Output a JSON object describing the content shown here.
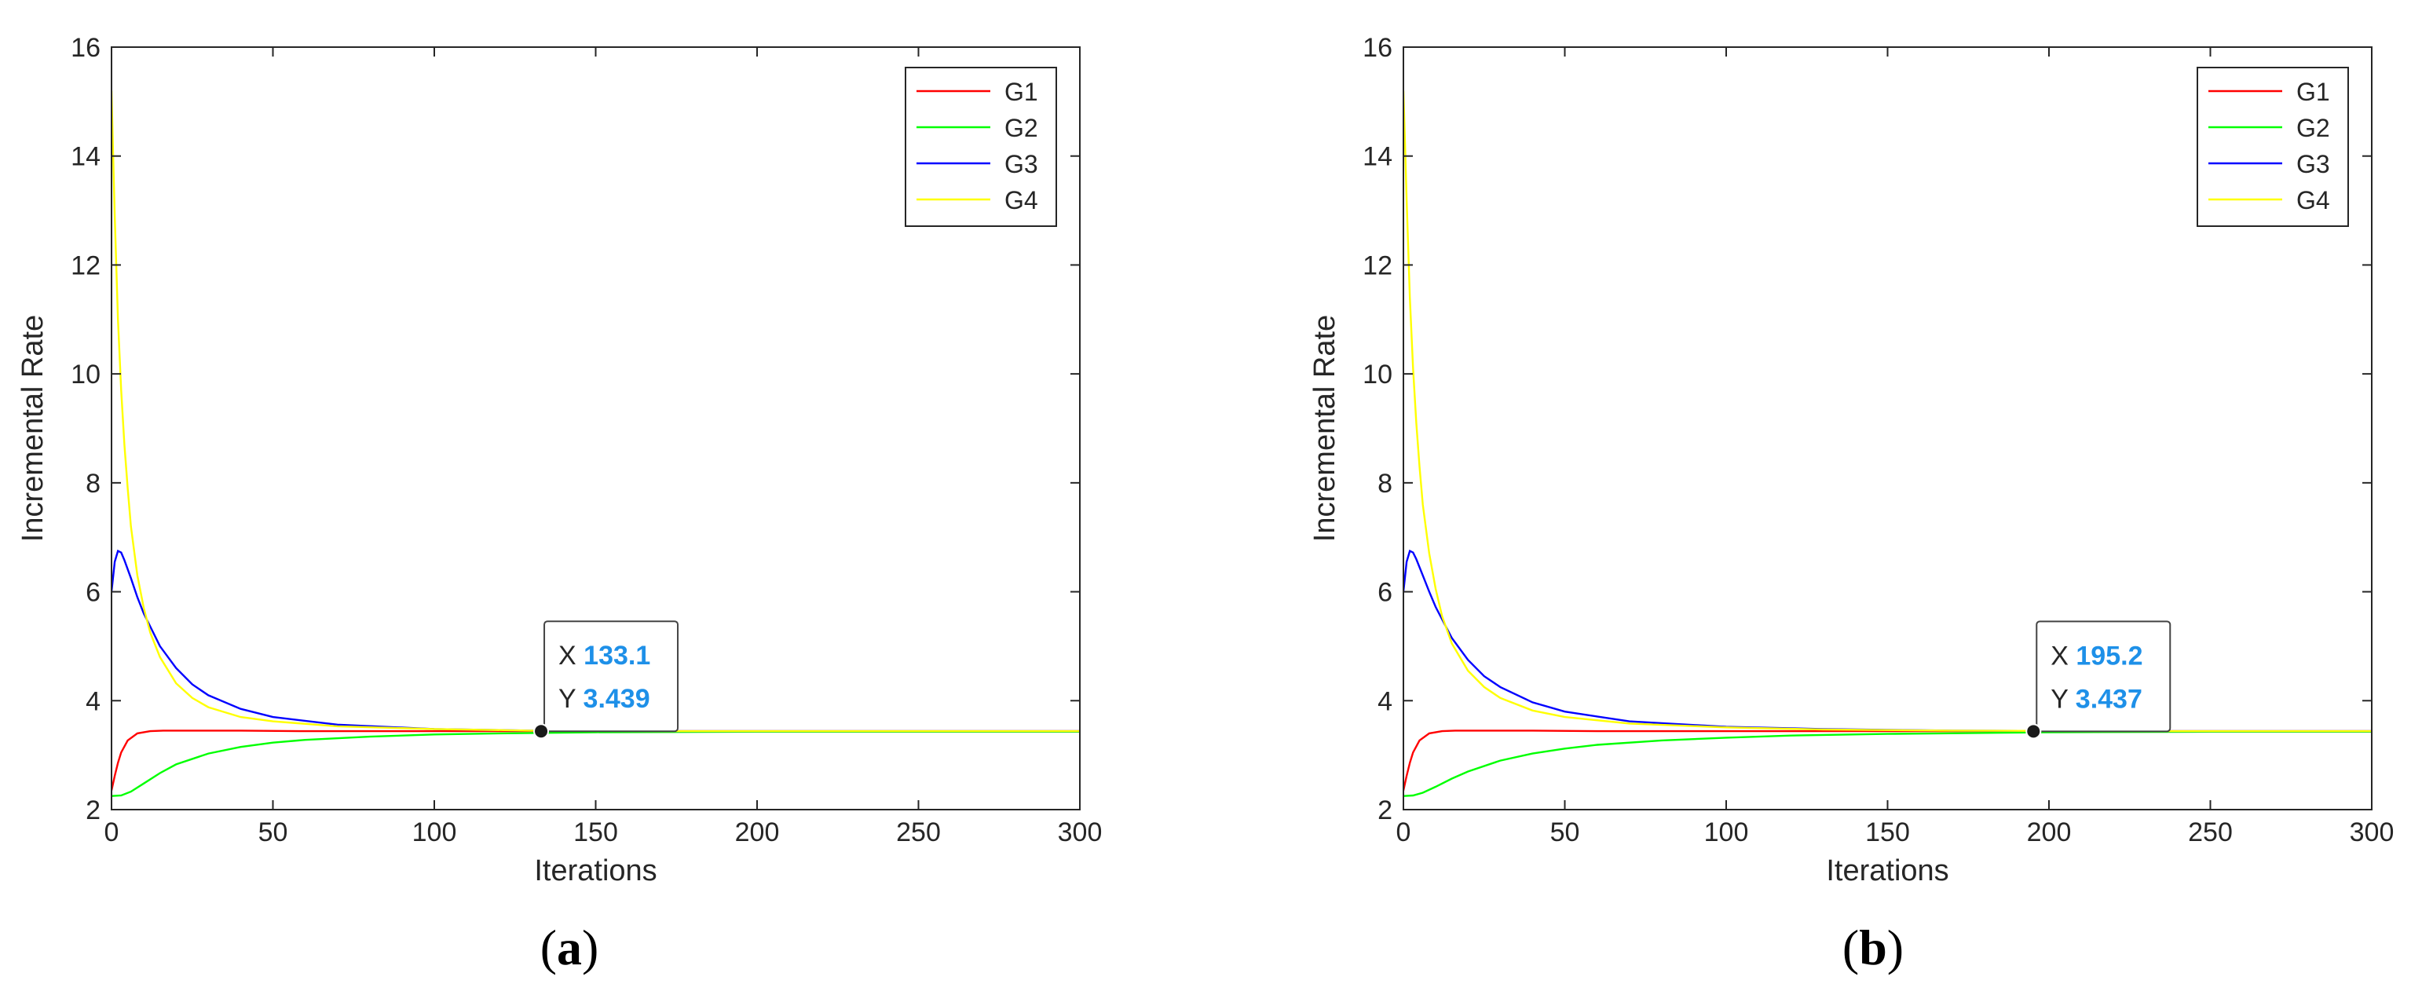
{
  "chart_data": [
    {
      "type": "line",
      "panel_label": "a",
      "xlabel": "Iterations",
      "ylabel": "Incremental Rate",
      "xlim": [
        0,
        300
      ],
      "ylim": [
        2,
        16
      ],
      "xticks": [
        0,
        50,
        100,
        150,
        200,
        250,
        300
      ],
      "yticks": [
        2,
        4,
        6,
        8,
        10,
        12,
        14,
        16
      ],
      "legend_position": "top-right",
      "grid": false,
      "series": [
        {
          "name": "G1",
          "color": "#ff0000",
          "x": [
            0,
            1,
            2,
            3,
            5,
            8,
            12,
            16,
            20,
            25,
            30,
            40,
            60,
            100,
            150,
            200,
            300
          ],
          "y": [
            2.35,
            2.62,
            2.86,
            3.05,
            3.27,
            3.4,
            3.44,
            3.45,
            3.45,
            3.45,
            3.45,
            3.45,
            3.44,
            3.44,
            3.44,
            3.44,
            3.44
          ]
        },
        {
          "name": "G2",
          "color": "#00ff00",
          "x": [
            0,
            3,
            6,
            10,
            15,
            20,
            30,
            40,
            50,
            60,
            80,
            100,
            120,
            150,
            200,
            250,
            300
          ],
          "y": [
            2.25,
            2.26,
            2.33,
            2.48,
            2.67,
            2.83,
            3.03,
            3.15,
            3.23,
            3.28,
            3.34,
            3.38,
            3.4,
            3.42,
            3.43,
            3.43,
            3.43
          ]
        },
        {
          "name": "G3",
          "color": "#0000ff",
          "x": [
            0,
            1,
            2,
            3,
            4,
            6,
            8,
            10,
            15,
            20,
            25,
            30,
            40,
            50,
            70,
            100,
            130,
            170,
            220,
            300
          ],
          "y": [
            6.0,
            6.55,
            6.75,
            6.72,
            6.58,
            6.25,
            5.9,
            5.6,
            5.0,
            4.6,
            4.3,
            4.1,
            3.85,
            3.7,
            3.56,
            3.48,
            3.45,
            3.44,
            3.44,
            3.44
          ]
        },
        {
          "name": "G4",
          "color": "#ffff00",
          "x": [
            0,
            0.5,
            1,
            2,
            3,
            4,
            5,
            6,
            8,
            10,
            12,
            15,
            20,
            25,
            30,
            40,
            50,
            70,
            100,
            130,
            170,
            220,
            300
          ],
          "y": [
            15.2,
            14.0,
            12.9,
            11.0,
            9.7,
            8.7,
            7.9,
            7.2,
            6.3,
            5.7,
            5.25,
            4.8,
            4.32,
            4.05,
            3.88,
            3.7,
            3.62,
            3.53,
            3.48,
            3.45,
            3.44,
            3.44,
            3.44
          ]
        }
      ],
      "datatip": {
        "x": 133.1,
        "y": 3.439,
        "x_label": "X",
        "y_label": "Y",
        "x_text": "133.1",
        "y_text": "3.439"
      }
    },
    {
      "type": "line",
      "panel_label": "b",
      "xlabel": "Iterations",
      "ylabel": "Incremental Rate",
      "xlim": [
        0,
        300
      ],
      "ylim": [
        2,
        16
      ],
      "xticks": [
        0,
        50,
        100,
        150,
        200,
        250,
        300
      ],
      "yticks": [
        2,
        4,
        6,
        8,
        10,
        12,
        14,
        16
      ],
      "legend_position": "top-right",
      "grid": false,
      "series": [
        {
          "name": "G1",
          "color": "#ff0000",
          "x": [
            0,
            1,
            2,
            3,
            5,
            8,
            12,
            16,
            20,
            25,
            30,
            40,
            60,
            100,
            150,
            200,
            300
          ],
          "y": [
            2.35,
            2.62,
            2.86,
            3.05,
            3.27,
            3.4,
            3.44,
            3.45,
            3.45,
            3.45,
            3.45,
            3.45,
            3.44,
            3.44,
            3.44,
            3.44,
            3.44
          ]
        },
        {
          "name": "G2",
          "color": "#00ff00",
          "x": [
            0,
            3,
            6,
            10,
            15,
            20,
            30,
            40,
            50,
            60,
            80,
            100,
            120,
            150,
            200,
            250,
            300
          ],
          "y": [
            2.25,
            2.26,
            2.31,
            2.42,
            2.57,
            2.7,
            2.9,
            3.03,
            3.12,
            3.19,
            3.27,
            3.32,
            3.36,
            3.39,
            3.42,
            3.43,
            3.43
          ]
        },
        {
          "name": "G3",
          "color": "#0000ff",
          "x": [
            0,
            1,
            2,
            3,
            4,
            6,
            8,
            10,
            15,
            20,
            25,
            30,
            40,
            50,
            70,
            100,
            130,
            170,
            220,
            300
          ],
          "y": [
            6.0,
            6.55,
            6.75,
            6.72,
            6.6,
            6.3,
            6.0,
            5.72,
            5.15,
            4.75,
            4.45,
            4.25,
            3.97,
            3.8,
            3.62,
            3.52,
            3.48,
            3.45,
            3.44,
            3.44
          ]
        },
        {
          "name": "G4",
          "color": "#ffff00",
          "x": [
            0,
            0.5,
            1,
            2,
            3,
            4,
            5,
            6,
            8,
            10,
            12,
            15,
            20,
            25,
            30,
            40,
            50,
            70,
            100,
            130,
            170,
            220,
            300
          ],
          "y": [
            15.2,
            14.2,
            13.2,
            11.4,
            10.1,
            9.1,
            8.3,
            7.6,
            6.7,
            6.05,
            5.55,
            5.05,
            4.55,
            4.25,
            4.05,
            3.82,
            3.7,
            3.58,
            3.51,
            3.47,
            3.45,
            3.44,
            3.44
          ]
        }
      ],
      "datatip": {
        "x": 195.2,
        "y": 3.437,
        "x_label": "X",
        "y_label": "Y",
        "x_text": "195.2",
        "y_text": "3.437"
      }
    }
  ]
}
